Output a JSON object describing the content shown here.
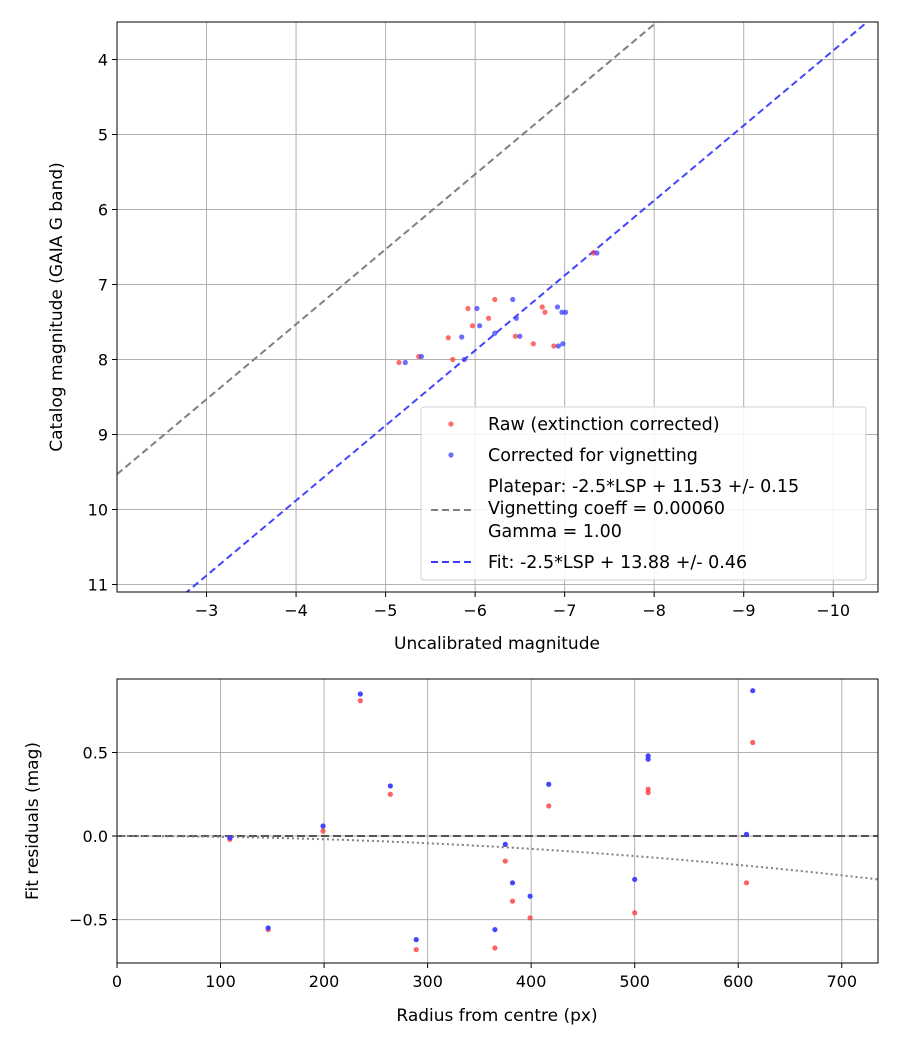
{
  "chart_data": [
    {
      "type": "scatter",
      "title": "",
      "xlabel": "Uncalibrated magnitude",
      "ylabel": "Catalog magnitude (GAIA G band)",
      "xlim": [
        -2.0,
        -10.5
      ],
      "ylim": [
        11.1,
        3.5
      ],
      "x_inverted": true,
      "y_inverted": true,
      "grid": true,
      "xticks": [
        -3,
        -4,
        -5,
        -6,
        -7,
        -8,
        -9,
        -10
      ],
      "xtick_labels": [
        "−3",
        "−4",
        "−5",
        "−6",
        "−7",
        "−8",
        "−9",
        "−10"
      ],
      "yticks": [
        4,
        5,
        6,
        7,
        8,
        9,
        10,
        11
      ],
      "ytick_labels": [
        "4",
        "5",
        "6",
        "7",
        "8",
        "9",
        "10",
        "11"
      ],
      "legend": {
        "placement": "lower-right",
        "entries": [
          {
            "label": "Raw (extinction corrected)",
            "marker": "dot",
            "color": "#ff3b3b"
          },
          {
            "label": "Corrected for vignetting",
            "marker": "dot",
            "color": "#3b3bff"
          },
          {
            "label_lines": [
              "Platepar: -2.5*LSP + 11.53 +/- 0.15",
              "Vignetting coeff = 0.00060",
              "Gamma = 1.00"
            ],
            "marker": "dash",
            "color": "#808080"
          },
          {
            "label": "Fit: -2.5*LSP + 13.88 +/- 0.46",
            "marker": "dash",
            "color": "#3b3bff"
          }
        ]
      },
      "lines": [
        {
          "name": "platepar",
          "slope": 1,
          "intercept": 11.53,
          "color": "#808080",
          "style": "dashed"
        },
        {
          "name": "fit",
          "slope": 1,
          "intercept": 13.88,
          "color": "#3b3bff",
          "style": "dashed"
        }
      ],
      "series": [
        {
          "name": "Raw (extinction corrected)",
          "color": "#ff3b3b",
          "points": [
            [
              -5.15,
              8.04
            ],
            [
              -5.37,
              7.96
            ],
            [
              -5.7,
              7.71
            ],
            [
              -5.75,
              8.0
            ],
            [
              -5.92,
              7.32
            ],
            [
              -5.97,
              7.55
            ],
            [
              -6.15,
              7.45
            ],
            [
              -6.22,
              7.2
            ],
            [
              -6.45,
              7.69
            ],
            [
              -6.65,
              7.79
            ],
            [
              -6.75,
              7.3
            ],
            [
              -6.78,
              7.37
            ],
            [
              -6.88,
              7.82
            ],
            [
              -7.32,
              6.58
            ]
          ]
        },
        {
          "name": "Corrected for vignetting",
          "color": "#3b3bff",
          "points": [
            [
              -5.22,
              8.04
            ],
            [
              -5.4,
              7.96
            ],
            [
              -5.85,
              7.7
            ],
            [
              -5.88,
              8.0
            ],
            [
              -6.02,
              7.32
            ],
            [
              -6.05,
              7.55
            ],
            [
              -6.22,
              7.65
            ],
            [
              -6.42,
              7.2
            ],
            [
              -6.46,
              7.45
            ],
            [
              -6.5,
              7.69
            ],
            [
              -6.92,
              7.3
            ],
            [
              -6.93,
              7.82
            ],
            [
              -6.97,
              7.37
            ],
            [
              -6.98,
              7.79
            ],
            [
              -7.01,
              7.37
            ],
            [
              -7.36,
              6.58
            ]
          ]
        }
      ]
    },
    {
      "type": "scatter",
      "title": "",
      "xlabel": "Radius from centre (px)",
      "ylabel": "Fit residuals (mag)",
      "xlim": [
        0,
        735
      ],
      "ylim": [
        -0.76,
        0.94
      ],
      "grid": true,
      "xticks": [
        0,
        100,
        200,
        300,
        400,
        500,
        600,
        700
      ],
      "xtick_labels": [
        "0",
        "100",
        "200",
        "300",
        "400",
        "500",
        "600",
        "700"
      ],
      "yticks": [
        -0.5,
        0.0,
        0.5
      ],
      "ytick_labels": [
        "−0.5",
        "0.0",
        "0.5"
      ],
      "zero_line": {
        "y": 0,
        "color": "#555555",
        "style": "dashed"
      },
      "vignetting_curve": {
        "coeff": 0.0006,
        "color": "#808080",
        "style": "dotted"
      },
      "series": [
        {
          "name": "Raw (extinction corrected)",
          "color": "#ff3b3b",
          "points": [
            [
              109,
              -0.02
            ],
            [
              146,
              -0.56
            ],
            [
              199,
              0.03
            ],
            [
              235,
              0.81
            ],
            [
              264,
              0.25
            ],
            [
              289,
              -0.68
            ],
            [
              365,
              -0.67
            ],
            [
              375,
              -0.15
            ],
            [
              382,
              -0.39
            ],
            [
              399,
              -0.49
            ],
            [
              417,
              0.18
            ],
            [
              500,
              -0.46
            ],
            [
              513,
              0.26
            ],
            [
              513,
              0.28
            ],
            [
              608,
              -0.28
            ],
            [
              614,
              0.56
            ]
          ]
        },
        {
          "name": "Corrected for vignetting",
          "color": "#3b3bff",
          "points": [
            [
              109,
              -0.01
            ],
            [
              146,
              -0.55
            ],
            [
              199,
              0.06
            ],
            [
              235,
              0.85
            ],
            [
              264,
              0.3
            ],
            [
              289,
              -0.62
            ],
            [
              365,
              -0.56
            ],
            [
              375,
              -0.05
            ],
            [
              382,
              -0.28
            ],
            [
              399,
              -0.36
            ],
            [
              417,
              0.31
            ],
            [
              500,
              -0.26
            ],
            [
              513,
              0.46
            ],
            [
              513,
              0.48
            ],
            [
              608,
              0.01
            ],
            [
              614,
              0.87
            ]
          ]
        }
      ]
    }
  ]
}
